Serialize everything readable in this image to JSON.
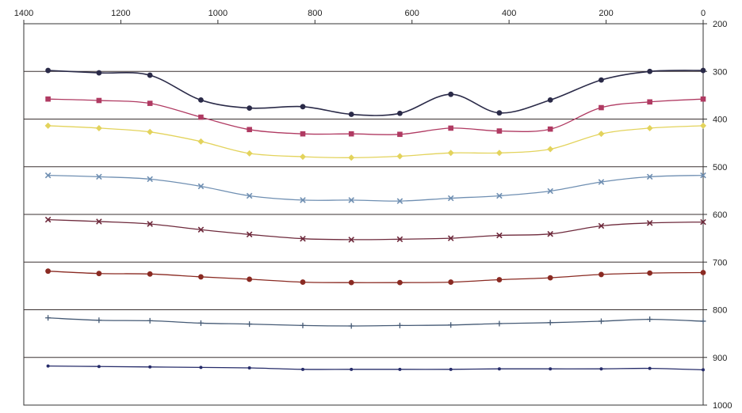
{
  "chart_data": {
    "type": "line",
    "title": "",
    "xlabel": "",
    "ylabel": "",
    "xlim": [
      1400,
      0
    ],
    "ylim": [
      200,
      1000
    ],
    "x_axis_reversed": true,
    "x_axis_position": "top",
    "y_axis_reversed": true,
    "y_axis_position": "right",
    "grid": "horizontal lines at y-axis ticks",
    "legend": "none",
    "x_ticks": [
      1400,
      1200,
      1000,
      800,
      600,
      400,
      200,
      0
    ],
    "y_ticks": [
      200,
      300,
      400,
      500,
      600,
      700,
      800,
      900,
      1000
    ],
    "x": [
      1350,
      1245,
      1140,
      1035,
      935,
      825,
      725,
      625,
      520,
      420,
      315,
      210,
      110,
      0
    ],
    "series": [
      {
        "color": "#2a2a48",
        "marker": "circle",
        "values": [
          298,
          303,
          308,
          360,
          377,
          374,
          390,
          388,
          348,
          387,
          360,
          318,
          300,
          298
        ]
      },
      {
        "color": "#b03a62",
        "marker": "square",
        "values": [
          358,
          361,
          367,
          396,
          422,
          431,
          431,
          432,
          419,
          425,
          421,
          376,
          364,
          358
        ]
      },
      {
        "color": "#e3d35c",
        "marker": "diamond",
        "values": [
          414,
          419,
          427,
          447,
          472,
          479,
          481,
          478,
          471,
          471,
          463,
          431,
          419,
          414
        ]
      },
      {
        "color": "#6f8fb2",
        "marker": "x",
        "values": [
          518,
          521,
          526,
          541,
          561,
          570,
          570,
          572,
          566,
          561,
          551,
          532,
          521,
          518
        ]
      },
      {
        "color": "#6e2a3c",
        "marker": "x",
        "values": [
          611,
          615,
          620,
          632,
          642,
          651,
          653,
          652,
          650,
          644,
          641,
          624,
          618,
          616
        ]
      },
      {
        "color": "#8a2a22",
        "marker": "circle",
        "values": [
          719,
          724,
          725,
          731,
          736,
          742,
          743,
          743,
          742,
          737,
          733,
          726,
          723,
          722
        ]
      },
      {
        "color": "#455a75",
        "marker": "plus",
        "values": [
          817,
          822,
          823,
          828,
          830,
          833,
          834,
          833,
          832,
          829,
          827,
          824,
          820,
          824
        ]
      },
      {
        "color": "#262c6a",
        "marker": "dot",
        "values": [
          918,
          919,
          920,
          921,
          922,
          925,
          925,
          925,
          925,
          924,
          924,
          924,
          923,
          926
        ]
      }
    ]
  }
}
